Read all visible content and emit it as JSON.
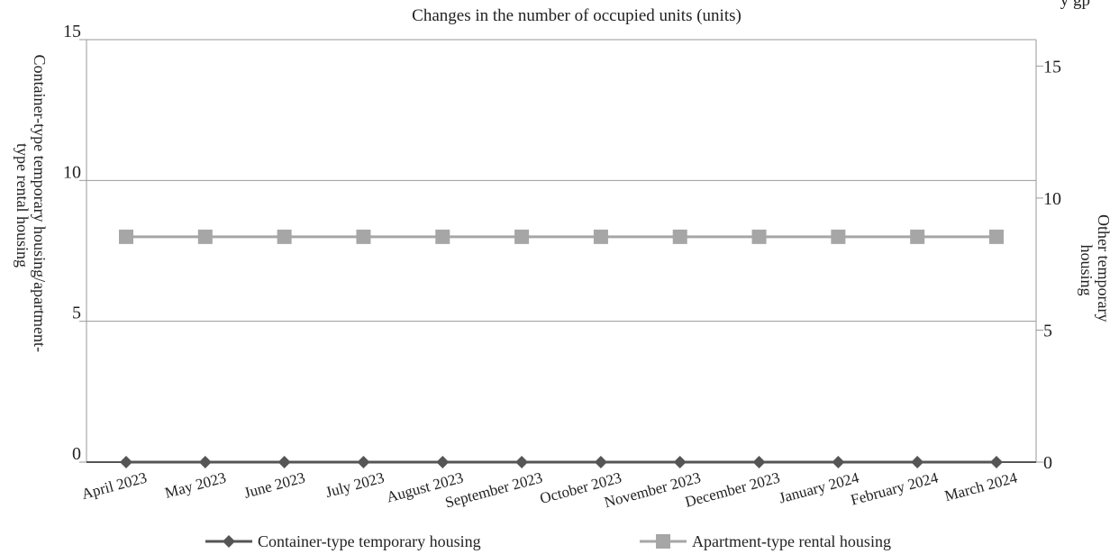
{
  "page": {
    "corner_fragment": "y gp"
  },
  "chart_data": {
    "type": "line",
    "title": "Changes in the number of occupied units (units)",
    "categories": [
      "April 2023",
      "May 2023",
      "June 2023",
      "July 2023",
      "August 2023",
      "September 2023",
      "October 2023",
      "November 2023",
      "December 2023",
      "January 2024",
      "February 2024",
      "March 2024"
    ],
    "y_left": {
      "label_lines": [
        "Container-type temporary housing/apartment-",
        "type rental housing"
      ],
      "range": [
        0,
        15
      ],
      "ticks": [
        0,
        5,
        10,
        15
      ],
      "tick_labels": [
        "0",
        "5",
        "10",
        "15"
      ]
    },
    "y_right": {
      "label_lines": [
        "Other temporary",
        "housing"
      ],
      "range": [
        0,
        16
      ],
      "ticks": [
        0,
        5,
        10,
        15
      ],
      "tick_labels": [
        "0",
        "5",
        "10",
        "15"
      ]
    },
    "grid": true,
    "legend_position": "bottom",
    "series": [
      {
        "name": "Container-type temporary housing",
        "axis": "left",
        "marker": "diamond",
        "color": "#555555",
        "values": [
          0,
          0,
          0,
          0,
          0,
          0,
          0,
          0,
          0,
          0,
          0,
          0
        ]
      },
      {
        "name": "Apartment-type rental housing",
        "axis": "left",
        "marker": "square",
        "color": "#a6a6a6",
        "values": [
          8,
          8,
          8,
          8,
          8,
          8,
          8,
          8,
          8,
          8,
          8,
          8
        ]
      }
    ]
  }
}
